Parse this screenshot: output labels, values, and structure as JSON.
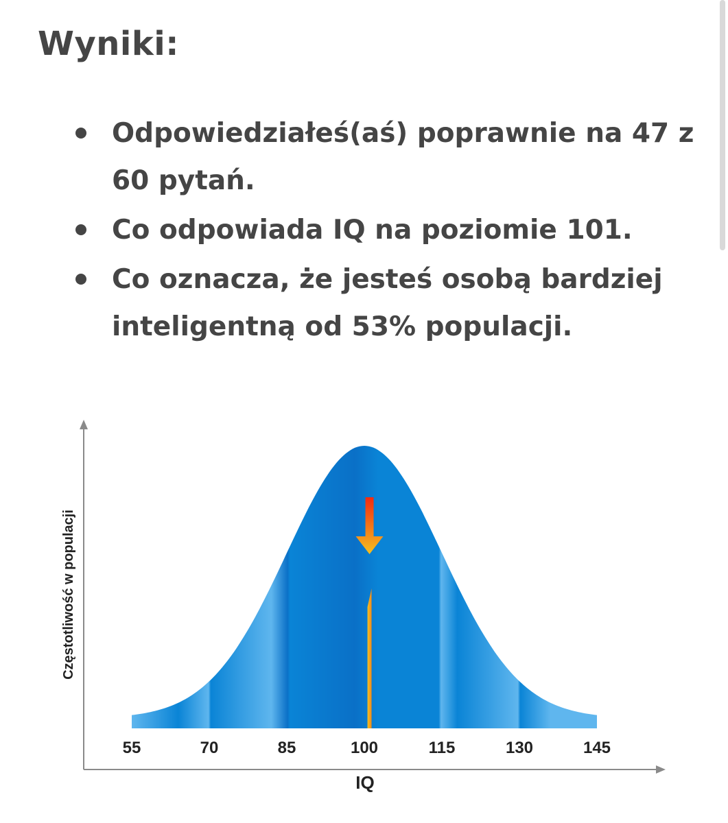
{
  "results": {
    "heading": "Wyniki:",
    "items": [
      "Odpowiedziałeś(aś) poprawnie na 47 z 60 pytań.",
      "Co odpowiada IQ na poziomie 101.",
      "Co oznacza, że jesteś osobą bardziej inteligentną od 53% populacji."
    ]
  },
  "chart_data": {
    "type": "area",
    "distribution": "normal",
    "mean": 100,
    "sd": 15,
    "xlabel": "IQ",
    "ylabel": "Częstotliwość w populacji",
    "x_ticks": [
      55,
      70,
      85,
      100,
      115,
      130,
      145
    ],
    "xlim": [
      55,
      145
    ],
    "marker": {
      "x": 101,
      "icon": "down-arrow-icon"
    },
    "grid": false,
    "legend": "none",
    "colors": {
      "curve_fill": "#0a84d6",
      "curve_light": "#5fb6ee",
      "curve_dark": "#0a70c7",
      "marker_top": "#f22a10",
      "marker_bottom": "#f5c020",
      "axis": "#8a8a8a"
    }
  }
}
